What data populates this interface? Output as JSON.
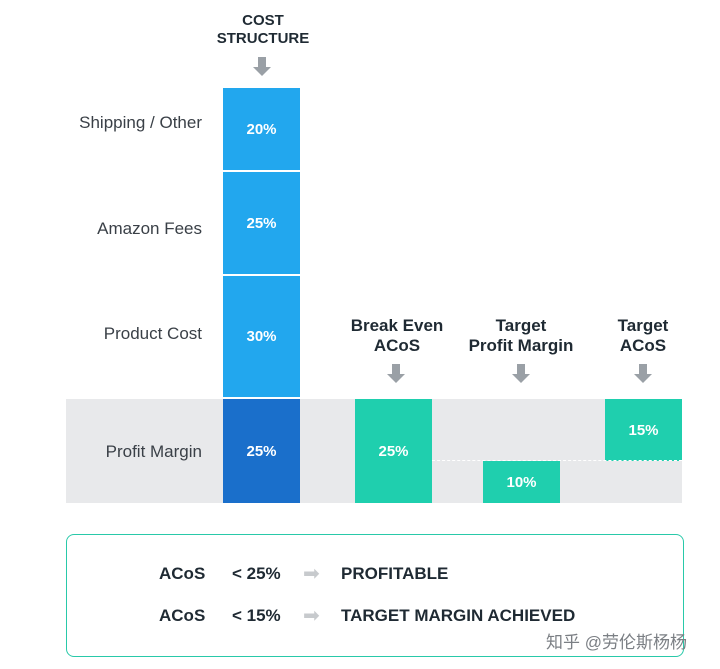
{
  "cost_structure": {
    "heading_line1": "COST",
    "heading_line2": "STRUCTURE",
    "segments": [
      {
        "label": "Shipping / Other",
        "value_text": "20%",
        "color": "#22a7ee"
      },
      {
        "label": "Amazon Fees",
        "value_text": "25%",
        "color": "#22a7ee"
      },
      {
        "label": "Product Cost",
        "value_text": "30%",
        "color": "#22a7ee"
      },
      {
        "label": "Profit Margin",
        "value_text": "25%",
        "color": "#1a6fcb"
      }
    ]
  },
  "scenarios": [
    {
      "heading_line1": "Break Even",
      "heading_line2": "ACoS",
      "value_text": "25%"
    },
    {
      "heading_line1": "Target",
      "heading_line2": "Profit Margin",
      "value_text": "10%"
    },
    {
      "heading_line1": "Target",
      "heading_line2": "ACoS",
      "value_text": "15%"
    }
  ],
  "summary": {
    "rows": [
      {
        "metric": "ACoS",
        "condition": "< 25%",
        "arrow": "➡",
        "result": "PROFITABLE"
      },
      {
        "metric": "ACoS",
        "condition": "< 15%",
        "arrow": "➡",
        "result": "TARGET MARGIN ACHIEVED"
      }
    ]
  },
  "watermark": "知乎 @劳伦斯杨杨",
  "colors": {
    "teal": "#1fcfae",
    "blue": "#22a7ee",
    "dark_blue": "#1a6fcb",
    "band": "#e8e9eb",
    "border": "#29c9a9"
  },
  "chart_data": {
    "type": "bar",
    "title": "",
    "categories": [
      "COST STRUCTURE",
      "Break Even ACoS",
      "Target Profit Margin",
      "Target ACoS"
    ],
    "series": [
      {
        "name": "Shipping / Other",
        "values": [
          20,
          0,
          0,
          0
        ]
      },
      {
        "name": "Amazon Fees",
        "values": [
          25,
          0,
          0,
          0
        ]
      },
      {
        "name": "Product Cost",
        "values": [
          30,
          0,
          0,
          0
        ]
      },
      {
        "name": "Profit Margin",
        "values": [
          25,
          25,
          10,
          15
        ]
      }
    ],
    "ylim": [
      0,
      100
    ]
  }
}
